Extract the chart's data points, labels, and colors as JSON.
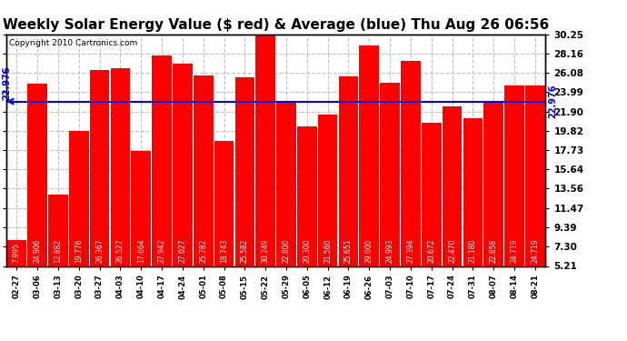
{
  "title": "Weekly Solar Energy Value ($ red) & Average (blue) Thu Aug 26 06:56",
  "copyright": "Copyright 2010 Cartronics.com",
  "average_value": 22.976,
  "average_label": "22.976",
  "categories": [
    "02-27",
    "03-06",
    "03-13",
    "03-20",
    "03-27",
    "04-03",
    "04-10",
    "04-17",
    "04-24",
    "05-01",
    "05-08",
    "05-15",
    "05-22",
    "05-29",
    "06-05",
    "06-12",
    "06-19",
    "06-26",
    "07-03",
    "07-10",
    "07-17",
    "07-24",
    "07-31",
    "08-07",
    "08-14",
    "08-21"
  ],
  "values": [
    7.995,
    24.906,
    12.882,
    19.776,
    26.367,
    26.527,
    17.664,
    27.942,
    27.027,
    25.782,
    18.743,
    25.582,
    30.249,
    22.8,
    20.3,
    21.56,
    25.651,
    29.0,
    24.993,
    27.394,
    20.672,
    22.47,
    21.18,
    22.858,
    24.719,
    24.719
  ],
  "bar_color": "#ff0000",
  "avg_line_color": "#0000ff",
  "background_color": "#ffffff",
  "plot_bg_color": "#ffffff",
  "yticks_right": [
    5.21,
    7.3,
    9.39,
    11.47,
    13.56,
    15.64,
    17.73,
    19.82,
    21.9,
    23.99,
    26.08,
    28.16,
    30.25
  ],
  "ymin": 5.21,
  "ymax": 30.25,
  "grid_color": "#c0c0c0",
  "title_fontsize": 11,
  "copyright_fontsize": 6.5,
  "bar_label_fontsize": 5.5,
  "tick_fontsize": 7.5,
  "avg_label_fontsize": 7
}
